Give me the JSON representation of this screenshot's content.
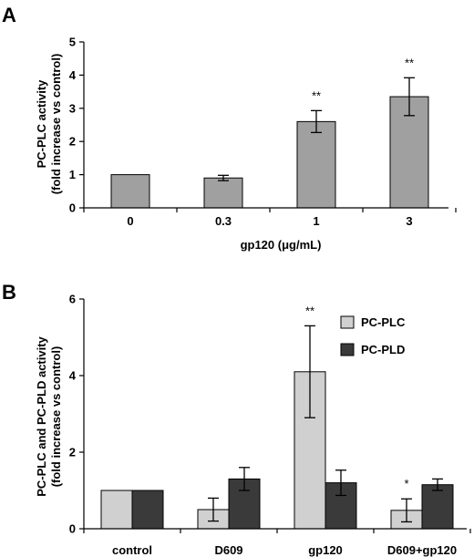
{
  "chart_data": [
    {
      "panel": "A",
      "type": "bar",
      "categories": [
        "0",
        "0.3",
        "1",
        "3"
      ],
      "series": [
        {
          "values": [
            1.0,
            0.9,
            2.6,
            3.35
          ],
          "errors": [
            0,
            0.08,
            0.33,
            0.57
          ],
          "significance": [
            "",
            "",
            "**",
            "**"
          ]
        }
      ],
      "xlabel": "gp120 (μg/mL)",
      "ylabel_line1": "PC-PLC activity",
      "ylabel_line2": "(fold  increase vs control)",
      "ylim": [
        0,
        5
      ],
      "yticks": [
        0,
        1,
        2,
        3,
        4,
        5
      ],
      "grid": false,
      "colors": [
        "#a0a0a0"
      ]
    },
    {
      "panel": "B",
      "type": "bar",
      "categories": [
        "control",
        "D609",
        "gp120",
        "D609+gp120"
      ],
      "series": [
        {
          "name": "PC-PLC",
          "values": [
            1.0,
            0.5,
            4.1,
            0.48
          ],
          "errors": [
            0,
            0.3,
            1.2,
            0.3
          ],
          "significance": [
            "",
            "",
            "**",
            "*"
          ]
        },
        {
          "name": "PC-PLD",
          "values": [
            1.0,
            1.3,
            1.2,
            1.15
          ],
          "errors": [
            0,
            0.3,
            0.33,
            0.15
          ],
          "significance": [
            "",
            "",
            "",
            ""
          ]
        }
      ],
      "xlabel": "",
      "ylabel_line1": "PC-PLC and PC-PLD activity",
      "ylabel_line2": "(fold increase vs control)",
      "ylim": [
        0,
        6
      ],
      "yticks": [
        0,
        2,
        4,
        6
      ],
      "grid": false,
      "legend": "top-right",
      "colors": [
        "#d0d0d0",
        "#3a3a3a"
      ]
    }
  ]
}
